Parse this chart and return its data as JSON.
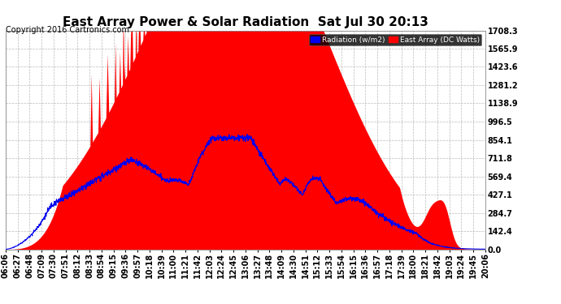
{
  "title": "East Array Power & Solar Radiation  Sat Jul 30 20:13",
  "copyright": "Copyright 2016 Cartronics.com",
  "legend_radiation": "Radiation (w/m2)",
  "legend_east": "East Array (DC Watts)",
  "yticks": [
    0.0,
    142.4,
    284.7,
    427.1,
    569.4,
    711.8,
    854.1,
    996.5,
    1138.9,
    1281.2,
    1423.6,
    1565.9,
    1708.3
  ],
  "ymax": 1708.3,
  "background_color": "#ffffff",
  "plot_bg_color": "#ffffff",
  "grid_color": "#aaaaaa",
  "fill_color": "#ff0000",
  "line_color": "#0000ee",
  "title_fontsize": 11,
  "tick_label_fontsize": 7,
  "copyright_fontsize": 7
}
